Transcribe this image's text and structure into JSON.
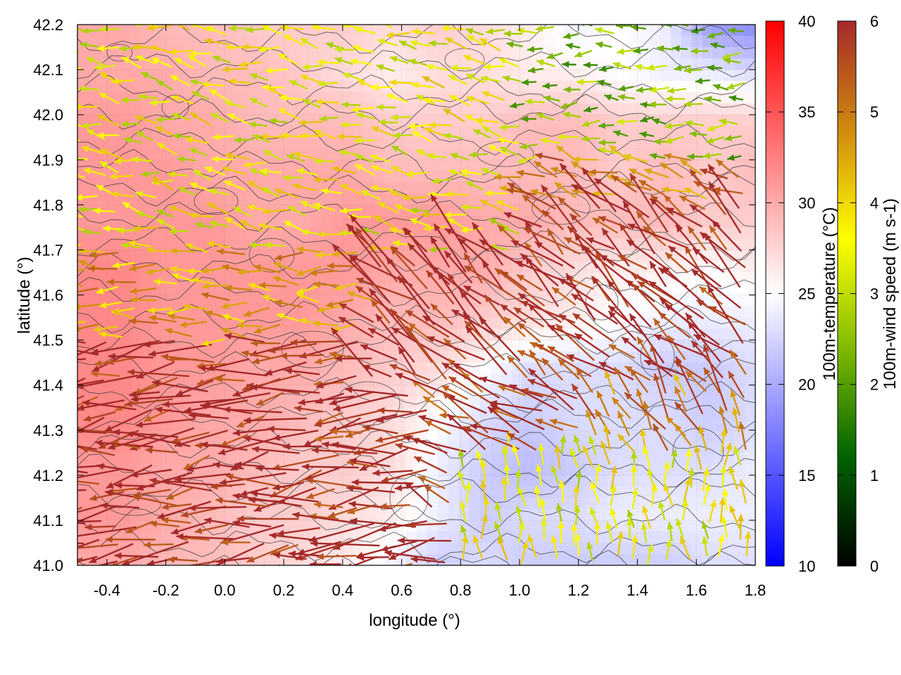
{
  "chart_data": {
    "type": "heatmap",
    "title": "",
    "xlabel": "longitude (°)",
    "ylabel": "latitude (°)",
    "xlim": [
      -0.5,
      1.8
    ],
    "ylim": [
      41.0,
      42.2
    ],
    "x_ticks": [
      "-0.4",
      "-0.2",
      "0.0",
      "0.2",
      "0.4",
      "0.6",
      "0.8",
      "1.0",
      "1.2",
      "1.4",
      "1.6",
      "1.8"
    ],
    "x_tick_values": [
      -0.4,
      -0.2,
      0.0,
      0.2,
      0.4,
      0.6,
      0.8,
      1.0,
      1.2,
      1.4,
      1.6,
      1.8
    ],
    "y_ticks": [
      "41.0",
      "41.1",
      "41.2",
      "41.3",
      "41.4",
      "41.5",
      "41.6",
      "41.7",
      "41.8",
      "41.9",
      "42.0",
      "42.1",
      "42.2"
    ],
    "y_tick_values": [
      41.0,
      41.1,
      41.2,
      41.3,
      41.4,
      41.5,
      41.6,
      41.7,
      41.8,
      41.9,
      42.0,
      42.1,
      42.2
    ],
    "grid": true,
    "field": {
      "name": "100m-temperature",
      "units": "°C",
      "approx_value_grid_lat_desc": [
        [
          30,
          30,
          29,
          29,
          28,
          28,
          28,
          27,
          28,
          27,
          26,
          24,
          25,
          24,
          19,
          18
        ],
        [
          30,
          30,
          30,
          29,
          29,
          28,
          27,
          26,
          27,
          27,
          26,
          26,
          25,
          24,
          24,
          23
        ],
        [
          31,
          31,
          30,
          30,
          29,
          29,
          29,
          28,
          28,
          28,
          29,
          29,
          28,
          28,
          28,
          28
        ],
        [
          31,
          31,
          31,
          30,
          30,
          30,
          30,
          29,
          29,
          29,
          29,
          29,
          28,
          29,
          28,
          29
        ],
        [
          31,
          31,
          31,
          31,
          30,
          30,
          31,
          31,
          31,
          30,
          30,
          29,
          29,
          29,
          28,
          28
        ],
        [
          32,
          32,
          31,
          31,
          31,
          31,
          31,
          30,
          30,
          30,
          28,
          27,
          26,
          26,
          25,
          26
        ],
        [
          32,
          32,
          31,
          31,
          31,
          31,
          30,
          29,
          29,
          28,
          27,
          26,
          25,
          24,
          24,
          24
        ],
        [
          32,
          32,
          31,
          31,
          30,
          30,
          29,
          28,
          27,
          25,
          23,
          23,
          23,
          22,
          22,
          23
        ],
        [
          32,
          32,
          31,
          30,
          30,
          29,
          28,
          27,
          25,
          23,
          22,
          23,
          23,
          23,
          22,
          23
        ],
        [
          31,
          31,
          30,
          30,
          29,
          28,
          28,
          27,
          24,
          22,
          21,
          22,
          23,
          23,
          23,
          24
        ],
        [
          31,
          31,
          30,
          29,
          28,
          28,
          27,
          26,
          24,
          22,
          23,
          23,
          24,
          24,
          24,
          24
        ],
        [
          30,
          30,
          29,
          29,
          28,
          27,
          26,
          24,
          22,
          23,
          22,
          22,
          22,
          22,
          23,
          23
        ]
      ]
    },
    "vectors": {
      "name": "100m-wind speed",
      "units": "m s-1",
      "description_regions": [
        {
          "region": "south-west (lon -0.5 to 0.8, lat 41.0 to 41.5)",
          "direction": "westward",
          "speed": 6
        },
        {
          "region": "central (lon 0.5 to 1.8, lat 41.4 to 41.8)",
          "direction": "north-westward",
          "speed": 6
        },
        {
          "region": "north-west (lon -0.5 to 1.0, lat 41.7 to 42.2)",
          "direction": "west/north-west",
          "speed": 3.5
        },
        {
          "region": "north-east (lon 1.0 to 1.8, lat 41.9 to 42.2)",
          "direction": "westward",
          "speed": 2.5
        },
        {
          "region": "south-east (lon 1.1 to 1.8, lat 41.0 to 41.25)",
          "direction": "northward",
          "speed": 3.5
        }
      ]
    },
    "colorbars": [
      {
        "name": "temperature",
        "label": "100m-temperature (°C)",
        "range": [
          10,
          40
        ],
        "ticks": [
          "10",
          "15",
          "20",
          "25",
          "30",
          "35",
          "40"
        ],
        "tick_values": [
          10,
          15,
          20,
          25,
          30,
          35,
          40
        ],
        "colors": [
          "#0000ff",
          "#ffffff",
          "#ff0000"
        ]
      },
      {
        "name": "wind",
        "label": "100m-wind speed (m s-1)",
        "range": [
          0,
          6
        ],
        "ticks": [
          "0",
          "1",
          "2",
          "3",
          "4",
          "5",
          "6"
        ],
        "tick_values": [
          0,
          1,
          2,
          3,
          4,
          5,
          6
        ],
        "colors": [
          "#000000",
          "#006400",
          "#7fba00",
          "#ffff00",
          "#d08a10",
          "#a52a2a"
        ]
      }
    ]
  }
}
